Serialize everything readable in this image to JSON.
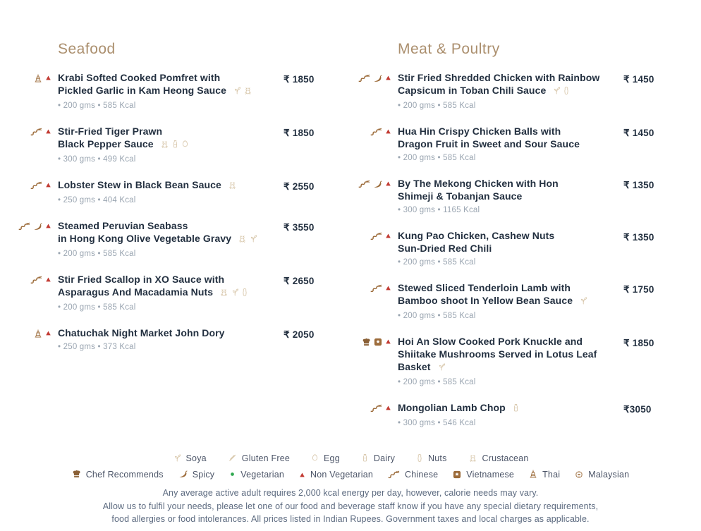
{
  "colors": {
    "heading_tan": "#ab8f6e",
    "item_text": "#233040",
    "portion_gray": "#9aa5b1",
    "tag_brown": "#9c6b3a",
    "allergen_beige": "#d8c7ab",
    "non_veg_red": "#c23a32",
    "veg_green": "#2fa84f",
    "legend_text": "#4c5568",
    "disclaimer_text": "#5d6b80"
  },
  "sections": [
    {
      "title": "Seafood",
      "items": [
        {
          "tags": [
            "thai-icon",
            "non-vegetarian-icon"
          ],
          "name": "Krabi Softed Cooked Pomfret with\nPickled Garlic in Kam Heong Sauce",
          "allergens": [
            "soya-icon",
            "crustacean-icon"
          ],
          "price": "₹ 1850",
          "portion": "• 200 gms • 585 Kcal"
        },
        {
          "tags": [
            "chinese-icon",
            "non-vegetarian-icon"
          ],
          "name": "Stir-Fried Tiger Prawn\nBlack Pepper Sauce",
          "allergens": [
            "crustacean-icon",
            "dairy-icon",
            "egg-icon"
          ],
          "price": "₹ 1850",
          "portion": "• 300 gms • 499 Kcal"
        },
        {
          "tags": [
            "chinese-icon",
            "non-vegetarian-icon"
          ],
          "name": "Lobster Stew in Black Bean Sauce",
          "allergens": [
            "crustacean-icon"
          ],
          "price": "₹ 2550",
          "portion": "• 250 gms • 404 Kcal"
        },
        {
          "tags": [
            "chinese-icon",
            "spicy-icon",
            "non-vegetarian-icon"
          ],
          "name": "Steamed Peruvian Seabass\nin Hong Kong Olive Vegetable Gravy",
          "allergens": [
            "crustacean-icon",
            "soya-icon"
          ],
          "price": "₹ 3550",
          "portion": "• 200 gms • 585 Kcal"
        },
        {
          "tags": [
            "chinese-icon",
            "non-vegetarian-icon"
          ],
          "name": "Stir Fried Scallop in XO Sauce with\nAsparagus And Macadamia Nuts",
          "allergens": [
            "crustacean-icon",
            "soya-icon",
            "nuts-icon"
          ],
          "price": "₹ 2650",
          "portion": "• 200 gms • 585 Kcal"
        },
        {
          "tags": [
            "thai-icon",
            "non-vegetarian-icon"
          ],
          "name": "Chatuchak Night Market John Dory",
          "allergens": [],
          "price": "₹ 2050",
          "portion": "• 250 gms • 373 Kcal"
        }
      ]
    },
    {
      "title": "Meat & Poultry",
      "items": [
        {
          "tags": [
            "chinese-icon",
            "spicy-icon",
            "non-vegetarian-icon"
          ],
          "name": "Stir Fried Shredded Chicken with Rainbow\nCapsicum in Toban Chili Sauce",
          "allergens": [
            "soya-icon",
            "nuts-icon"
          ],
          "price": "₹ 1450",
          "portion": "• 200 gms • 585 Kcal"
        },
        {
          "tags": [
            "chinese-icon",
            "non-vegetarian-icon"
          ],
          "name": "Hua Hin Crispy Chicken Balls with\nDragon Fruit in Sweet and Sour Sauce",
          "allergens": [],
          "price": "₹ 1450",
          "portion": "• 200 gms • 585 Kcal"
        },
        {
          "tags": [
            "chinese-icon",
            "spicy-icon",
            "non-vegetarian-icon"
          ],
          "name": "By The Mekong Chicken with Hon\nShimeji & Tobanjan Sauce",
          "allergens": [],
          "price": "₹ 1350",
          "portion": "• 300 gms • 1165 Kcal"
        },
        {
          "tags": [
            "chinese-icon",
            "non-vegetarian-icon"
          ],
          "name": "Kung Pao Chicken, Cashew Nuts\nSun-Dried Red Chili",
          "allergens": [],
          "price": "₹ 1350",
          "portion": "• 200 gms • 585 Kcal"
        },
        {
          "tags": [
            "chinese-icon",
            "non-vegetarian-icon"
          ],
          "name": "Stewed Sliced Tenderloin Lamb with\nBamboo shoot In Yellow Bean Sauce",
          "allergens": [
            "soya-icon"
          ],
          "price": "₹ 1750",
          "portion": "• 200 gms • 585 Kcal"
        },
        {
          "tags": [
            "chef-recommends-icon",
            "vietnamese-icon",
            "non-vegetarian-icon"
          ],
          "name": "Hoi An Slow Cooked Pork Knuckle and\nShiitake Mushrooms Served in Lotus Leaf\nBasket",
          "allergens": [
            "soya-icon"
          ],
          "price": "₹ 1850",
          "portion": "• 200 gms • 585 Kcal"
        },
        {
          "tags": [
            "chinese-icon",
            "non-vegetarian-icon"
          ],
          "name": "Mongolian Lamb Chop",
          "allergens": [
            "dairy-icon"
          ],
          "price": "₹3050",
          "portion": "• 300 gms • 546 Kcal"
        }
      ]
    }
  ],
  "legend": {
    "allergens": [
      {
        "icon": "soya-icon",
        "label": "Soya"
      },
      {
        "icon": "gluten-free-icon",
        "label": "Gluten Free"
      },
      {
        "icon": "egg-icon",
        "label": "Egg"
      },
      {
        "icon": "dairy-icon",
        "label": "Dairy"
      },
      {
        "icon": "nuts-icon",
        "label": "Nuts"
      },
      {
        "icon": "crustacean-icon",
        "label": "Crustacean"
      }
    ],
    "tags": [
      {
        "icon": "chef-recommends-icon",
        "label": "Chef Recommends"
      },
      {
        "icon": "spicy-icon",
        "label": "Spicy"
      },
      {
        "icon": "vegetarian-icon",
        "label": "Vegetarian"
      },
      {
        "icon": "non-vegetarian-icon",
        "label": "Non Vegetarian"
      },
      {
        "icon": "chinese-icon",
        "label": "Chinese"
      },
      {
        "icon": "vietnamese-icon",
        "label": "Vietnamese"
      },
      {
        "icon": "thai-icon",
        "label": "Thai"
      },
      {
        "icon": "malaysian-icon",
        "label": "Malaysian"
      }
    ]
  },
  "disclaimer": {
    "line1": "Any average active adult requires 2,000 kcal energy per day, however, calorie needs may vary.",
    "line2": "Allow us to fulfil your needs, please let one of our food and beverage staff know if you have any special dietary requirements,",
    "line3": "food allergies or food intolerances. All prices listed in Indian Rupees. Government taxes and local charges as applicable."
  }
}
